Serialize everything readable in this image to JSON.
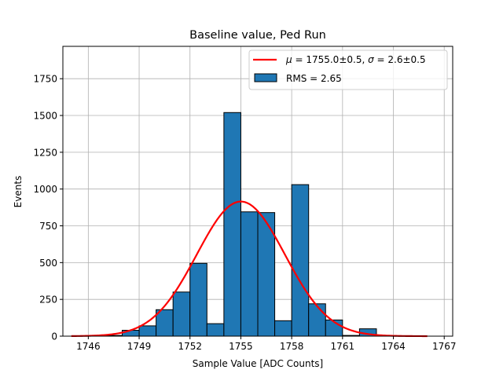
{
  "chart_data": {
    "type": "bar",
    "title": "Baseline value, Ped Run",
    "xlabel": "Sample Value [ADC Counts]",
    "ylabel": "Events",
    "xlim": [
      1744.5,
      1767.5
    ],
    "ylim": [
      0,
      1970
    ],
    "grid": true,
    "legend_position": "top-right",
    "xticks": [
      1746,
      1749,
      1752,
      1755,
      1758,
      1761,
      1764,
      1767
    ],
    "yticks": [
      0,
      250,
      500,
      750,
      1000,
      1250,
      1500,
      1750
    ],
    "histogram": {
      "name": "RMS = 2.65",
      "color": "#1f77b4",
      "edge_color": "#000000",
      "bins": [
        {
          "x0": 1747.0,
          "x1": 1748.0,
          "count": 5
        },
        {
          "x0": 1748.0,
          "x1": 1749.0,
          "count": 40
        },
        {
          "x0": 1749.0,
          "x1": 1750.0,
          "count": 70
        },
        {
          "x0": 1750.0,
          "x1": 1751.0,
          "count": 180
        },
        {
          "x0": 1751.0,
          "x1": 1752.0,
          "count": 300
        },
        {
          "x0": 1752.0,
          "x1": 1753.0,
          "count": 495
        },
        {
          "x0": 1753.0,
          "x1": 1754.0,
          "count": 85
        },
        {
          "x0": 1754.0,
          "x1": 1755.0,
          "count": 1520
        },
        {
          "x0": 1755.0,
          "x1": 1756.0,
          "count": 845
        },
        {
          "x0": 1756.0,
          "x1": 1757.0,
          "count": 840
        },
        {
          "x0": 1757.0,
          "x1": 1758.0,
          "count": 105
        },
        {
          "x0": 1758.0,
          "x1": 1759.0,
          "count": 1030
        },
        {
          "x0": 1759.0,
          "x1": 1760.0,
          "count": 220
        },
        {
          "x0": 1760.0,
          "x1": 1761.0,
          "count": 110
        },
        {
          "x0": 1761.0,
          "x1": 1762.0,
          "count": 5
        },
        {
          "x0": 1762.0,
          "x1": 1763.0,
          "count": 50
        },
        {
          "x0": 1763.0,
          "x1": 1764.0,
          "count": 2
        }
      ]
    },
    "fit": {
      "name": "$\\mu = 1755.0{\\pm}0.5$, $\\sigma = 2.6{\\pm}0.5$",
      "color": "#ff0000",
      "function": "gaussian",
      "amplitude": 915,
      "mean": 1755.0,
      "sigma": 2.6,
      "x_range": [
        1745.0,
        1766.0
      ]
    }
  }
}
